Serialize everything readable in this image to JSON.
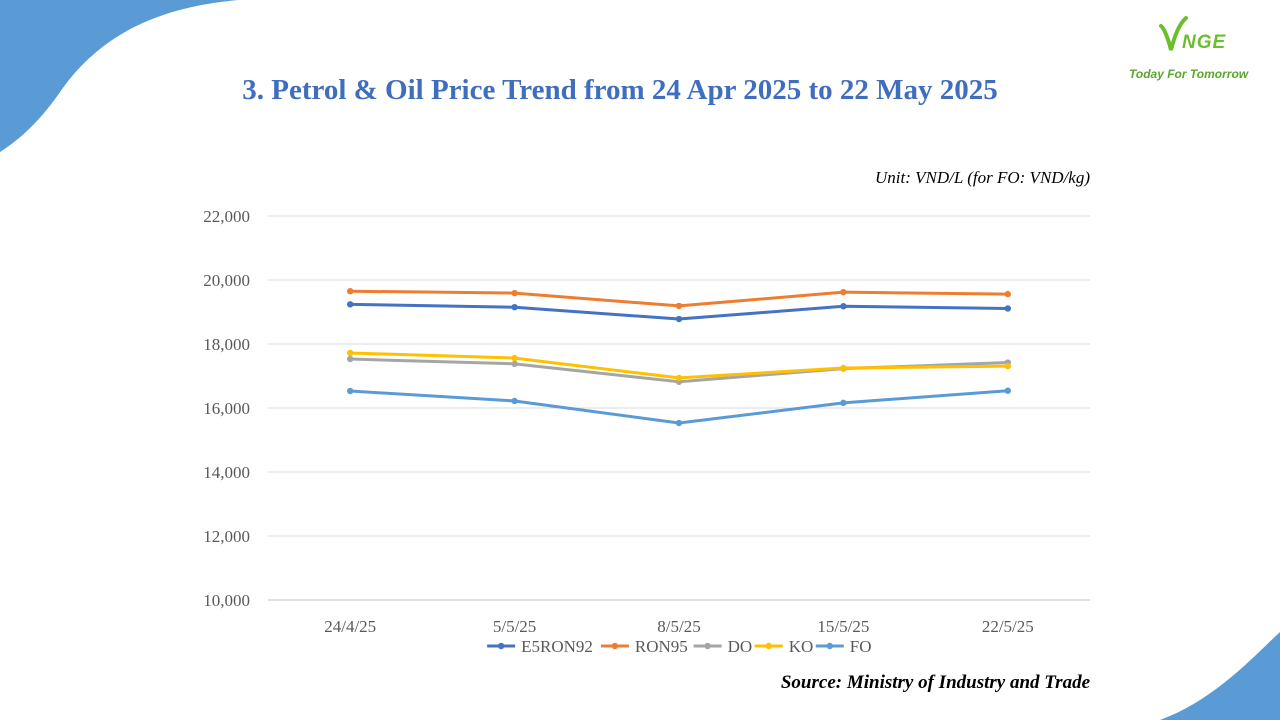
{
  "slide": {
    "title": "3. Petrol & Oil Price Trend from 24 Apr 2025 to 22 May 2025",
    "unit_note": "Unit: VND/L (for FO: VND/kg)",
    "source_note": "Source: Ministry of Industry and Trade"
  },
  "logo": {
    "mark": "V",
    "wordmark": "NGE",
    "tagline": "Today For Tomorrow",
    "color": "#6cbf2c"
  },
  "colors": {
    "title": "#3f6ebf",
    "decor": "#5b9bd5"
  },
  "chart_data": {
    "type": "line",
    "categories": [
      "24/4/25",
      "5/5/25",
      "8/5/25",
      "15/5/25",
      "22/5/25"
    ],
    "series": [
      {
        "name": "E5RON92",
        "color": "#4472c4",
        "values": [
          19240,
          19150,
          18780,
          19180,
          19110
        ]
      },
      {
        "name": "RON95",
        "color": "#ed7d31",
        "values": [
          19650,
          19590,
          19190,
          19620,
          19560
        ]
      },
      {
        "name": "DO",
        "color": "#a5a5a5",
        "values": [
          17530,
          17380,
          16820,
          17230,
          17420
        ]
      },
      {
        "name": "KO",
        "color": "#ffc000",
        "values": [
          17720,
          17560,
          16940,
          17250,
          17310
        ]
      },
      {
        "name": "FO",
        "color": "#5b9bd5",
        "values": [
          16530,
          16220,
          15530,
          16160,
          16540
        ]
      }
    ],
    "ylim": [
      10000,
      22000
    ],
    "yticks": [
      10000,
      12000,
      14000,
      16000,
      18000,
      20000,
      22000
    ],
    "grid": true,
    "legend": "bottom"
  }
}
